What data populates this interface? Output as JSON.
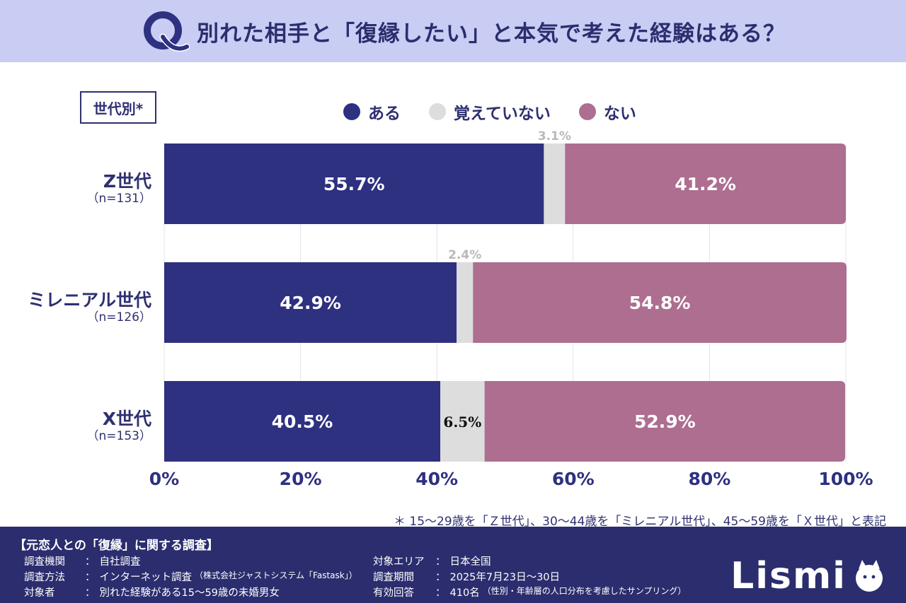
{
  "header": {
    "title": "別れた相手と「復縁したい」と本気で考えた経験はある？"
  },
  "badge": "世代別*",
  "colors": {
    "header_bg": "#c9ccf3",
    "aru": "#2e3080",
    "oboete": "#dddddd",
    "nai": "#ad6e90",
    "footer_bg": "#2b2d6e"
  },
  "chart_data": {
    "type": "bar",
    "orientation": "horizontal",
    "stacked": true,
    "categories": [
      "Z世代",
      "ミレニアル世代",
      "X世代"
    ],
    "category_n": [
      "（n=131）",
      "（n=126）",
      "（n=153）"
    ],
    "series": [
      {
        "name": "ある",
        "values": [
          55.7,
          42.9,
          40.5
        ],
        "labels": [
          "55.7%",
          "42.9%",
          "40.5%"
        ]
      },
      {
        "name": "覚えていない",
        "values": [
          3.1,
          2.4,
          6.5
        ],
        "labels": [
          "3.1%",
          "2.4%",
          "6.5%"
        ]
      },
      {
        "name": "ない",
        "values": [
          41.2,
          54.8,
          52.9
        ],
        "labels": [
          "41.2%",
          "54.8%",
          "52.9%"
        ]
      }
    ],
    "xlim": [
      0,
      100
    ],
    "x_ticks": [
      "0%",
      "20%",
      "40%",
      "60%",
      "80%",
      "100%"
    ],
    "grid": true,
    "legend_position": "top"
  },
  "footnote": "＊ 15〜29歳を「Ｚ世代」、30〜44歳を「ミレニアル世代」、45〜59歳を「Ｘ世代」と表記",
  "survey": {
    "title": "【元恋人との「復縁」に関する調査】",
    "left": [
      {
        "key": "調査機関",
        "value": "自社調査",
        "note": ""
      },
      {
        "key": "調査方法",
        "value": "インターネット調査",
        "note": "（株式会社ジャストシステム「Fastask」）"
      },
      {
        "key": "対象者",
        "value": "別れた経験がある15〜59歳の未婚男女",
        "note": ""
      }
    ],
    "right": [
      {
        "key": "対象エリア",
        "value": "日本全国",
        "note": ""
      },
      {
        "key": "調査期間",
        "value": "2025年7月23日〜30日",
        "note": ""
      },
      {
        "key": "有効回答",
        "value": "410名",
        "note": "（性別・年齢層の人口分布を考慮したサンプリング）"
      }
    ],
    "separator": "："
  },
  "brand": "Lismi"
}
